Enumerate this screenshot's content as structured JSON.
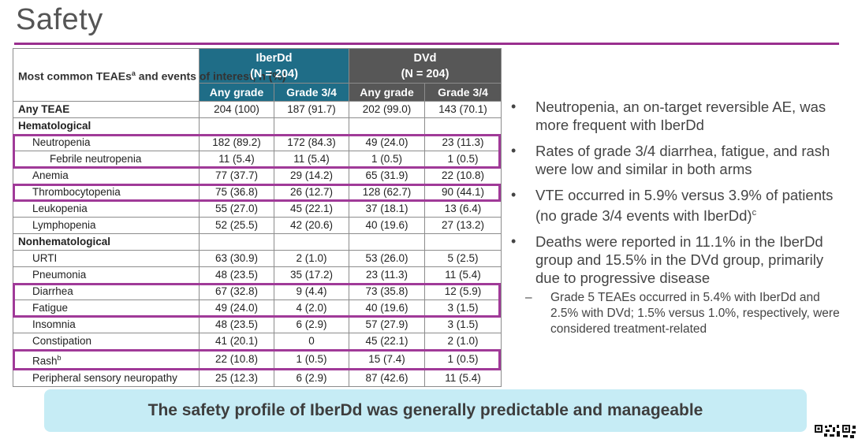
{
  "slide": {
    "title": "Safety",
    "table": {
      "corner_label": "Most common TEAEs",
      "corner_sup": "a",
      "corner_label_2": " and events of interest, n (%)",
      "groups": [
        {
          "name": "IberDd",
          "n": "(N = 204)"
        },
        {
          "name": "DVd",
          "n": "(N = 204)"
        }
      ],
      "subheaders": [
        "Any grade",
        "Grade 3/4",
        "Any grade",
        "Grade 3/4"
      ],
      "rows": [
        {
          "label": "Any TEAE",
          "sup": "",
          "style": "bold",
          "values": [
            "204 (100)",
            "187 (91.7)",
            "202 (99.0)",
            "143 (70.1)"
          ]
        },
        {
          "label": "Hematological",
          "sup": "",
          "style": "section",
          "values": [
            "",
            "",
            "",
            ""
          ]
        },
        {
          "label": "Neutropenia",
          "sup": "",
          "style": "ind1",
          "values": [
            "182 (89.2)",
            "172 (84.3)",
            "49 (24.0)",
            "23 (11.3)"
          ]
        },
        {
          "label": "Febrile neutropenia",
          "sup": "",
          "style": "ind2",
          "values": [
            "11 (5.4)",
            "11 (5.4)",
            "1 (0.5)",
            "1 (0.5)"
          ]
        },
        {
          "label": "Anemia",
          "sup": "",
          "style": "ind1",
          "values": [
            "77 (37.7)",
            "29 (14.2)",
            "65 (31.9)",
            "22 (10.8)"
          ]
        },
        {
          "label": "Thrombocytopenia",
          "sup": "",
          "style": "ind1",
          "values": [
            "75 (36.8)",
            "26 (12.7)",
            "128 (62.7)",
            "90 (44.1)"
          ]
        },
        {
          "label": "Leukopenia",
          "sup": "",
          "style": "ind1",
          "values": [
            "55 (27.0)",
            "45 (22.1)",
            "37 (18.1)",
            "13 (6.4)"
          ]
        },
        {
          "label": "Lymphopenia",
          "sup": "",
          "style": "ind1",
          "values": [
            "52 (25.5)",
            "42 (20.6)",
            "40 (19.6)",
            "27 (13.2)"
          ]
        },
        {
          "label": "Nonhematological",
          "sup": "",
          "style": "section",
          "values": [
            "",
            "",
            "",
            ""
          ]
        },
        {
          "label": "URTI",
          "sup": "",
          "style": "ind1",
          "values": [
            "63 (30.9)",
            "2 (1.0)",
            "53 (26.0)",
            "5 (2.5)"
          ]
        },
        {
          "label": "Pneumonia",
          "sup": "",
          "style": "ind1",
          "values": [
            "48 (23.5)",
            "35 (17.2)",
            "23 (11.3)",
            "11 (5.4)"
          ]
        },
        {
          "label": "Diarrhea",
          "sup": "",
          "style": "ind1",
          "values": [
            "67 (32.8)",
            "9 (4.4)",
            "73 (35.8)",
            "12 (5.9)"
          ]
        },
        {
          "label": "Fatigue",
          "sup": "",
          "style": "ind1",
          "values": [
            "49 (24.0)",
            "4 (2.0)",
            "40 (19.6)",
            "3 (1.5)"
          ]
        },
        {
          "label": "Insomnia",
          "sup": "",
          "style": "ind1",
          "values": [
            "48 (23.5)",
            "6 (2.9)",
            "57 (27.9)",
            "3 (1.5)"
          ]
        },
        {
          "label": "Constipation",
          "sup": "",
          "style": "ind1",
          "values": [
            "41 (20.1)",
            "0",
            "45 (22.1)",
            "2 (1.0)"
          ]
        },
        {
          "label": "Rash",
          "sup": "b",
          "style": "ind1",
          "values": [
            "22 (10.8)",
            "1 (0.5)",
            "15 (7.4)",
            "1 (0.5)"
          ]
        },
        {
          "label": "Peripheral sensory neuropathy",
          "sup": "",
          "style": "ind1",
          "values": [
            "25 (12.3)",
            "6 (2.9)",
            "87 (42.6)",
            "11 (5.4)"
          ]
        }
      ],
      "highlighted_rows": [
        "Neutropenia",
        "Febrile neutropenia",
        "Thrombocytopenia",
        "Diarrhea",
        "Fatigue",
        "Rash"
      ]
    },
    "bullets": [
      {
        "text": "Neutropenia, an on-target reversible AE, was more frequent with IberDd",
        "sup": ""
      },
      {
        "text": "Rates of grade 3/4 diarrhea, fatigue, and rash were low and similar in both arms",
        "sup": ""
      },
      {
        "text": "VTE occurred in 5.9% versus 3.9% of patients (no grade 3/4 events with IberDd)",
        "sup": "c"
      },
      {
        "text": "Deaths were reported in 11.1% in the IberDd group and 15.5% in the DVd group, primarily due to progressive disease",
        "sup": ""
      }
    ],
    "sub_bullet": "Grade 5 TEAEs occurred in 5.4% with IberDd and 2.5% with DVd; 1.5% versus 1.0%, respectively, were considered treatment-related",
    "bullet_glyph": "•",
    "dash_glyph": "–",
    "banner": "The safety profile of IberDd was generally predictable and manageable",
    "colors": {
      "iberdd_header": "#1f6d87",
      "dvd_header": "#575757",
      "highlight_border": "#a03a98",
      "title_rule": "#9a2f8f",
      "banner_bg": "#c6ecf5"
    }
  }
}
